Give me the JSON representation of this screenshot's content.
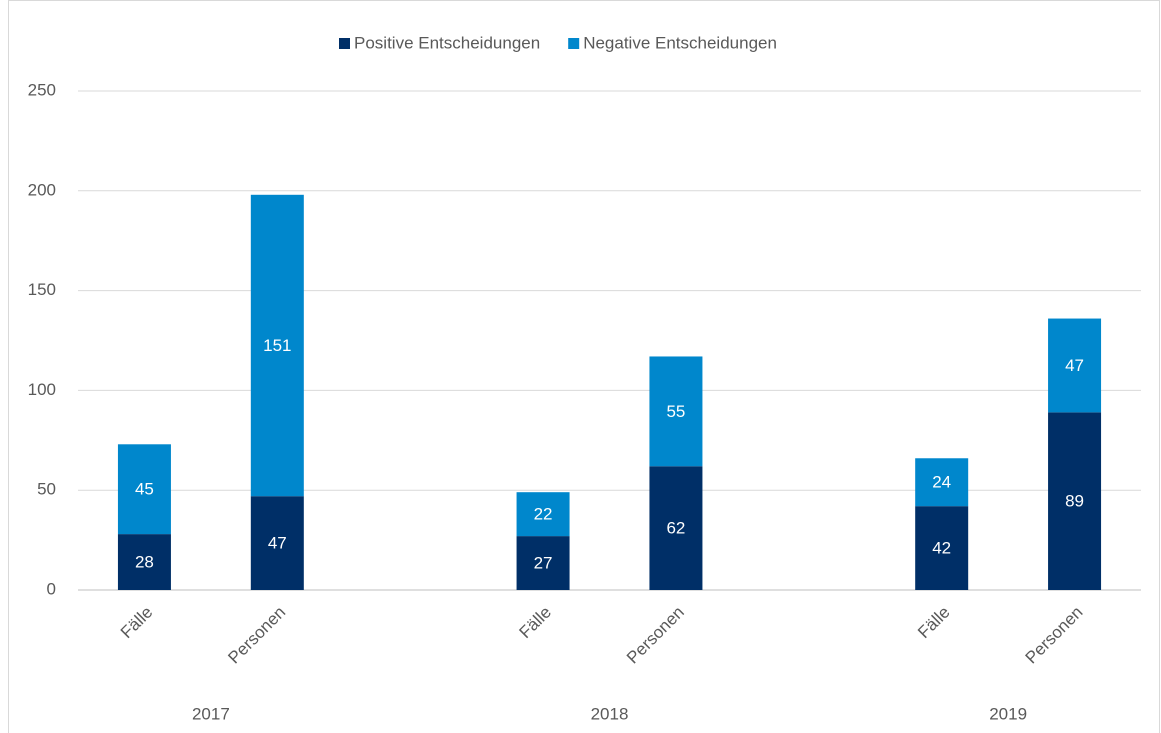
{
  "chart_data": {
    "type": "stacked_bar",
    "categories": [
      "Fälle",
      "Personen",
      "Fälle",
      "Personen",
      "Fälle",
      "Personen"
    ],
    "groups": [
      "2017",
      "2018",
      "2019"
    ],
    "series": [
      {
        "name": "Positive Entscheidungen",
        "color": "#002f67",
        "values": [
          28,
          47,
          27,
          62,
          42,
          89
        ]
      },
      {
        "name": "Negative Entscheidungen",
        "color": "#0087cc",
        "values": [
          45,
          151,
          22,
          55,
          24,
          47
        ]
      }
    ],
    "ylim": [
      0,
      250
    ],
    "yticks": [
      0,
      50,
      100,
      150,
      200,
      250
    ],
    "grid": true,
    "legend": "top"
  }
}
